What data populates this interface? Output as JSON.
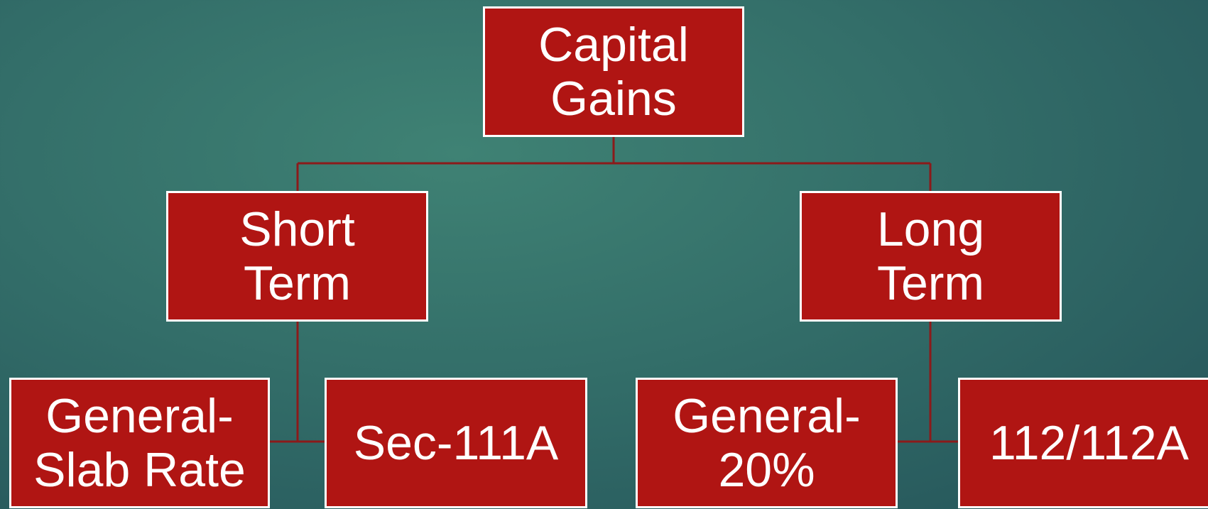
{
  "nodes": [
    {
      "lines": [
        "Capital",
        "Gains"
      ]
    },
    {
      "lines": [
        "Short",
        "Term"
      ]
    },
    {
      "lines": [
        "Long",
        "Term"
      ]
    },
    {
      "lines": [
        "General-",
        "Slab Rate"
      ]
    },
    {
      "lines": [
        "Sec-111A"
      ]
    },
    {
      "lines": [
        "General-",
        "20%"
      ]
    },
    {
      "lines": [
        "112/112A"
      ]
    }
  ]
}
